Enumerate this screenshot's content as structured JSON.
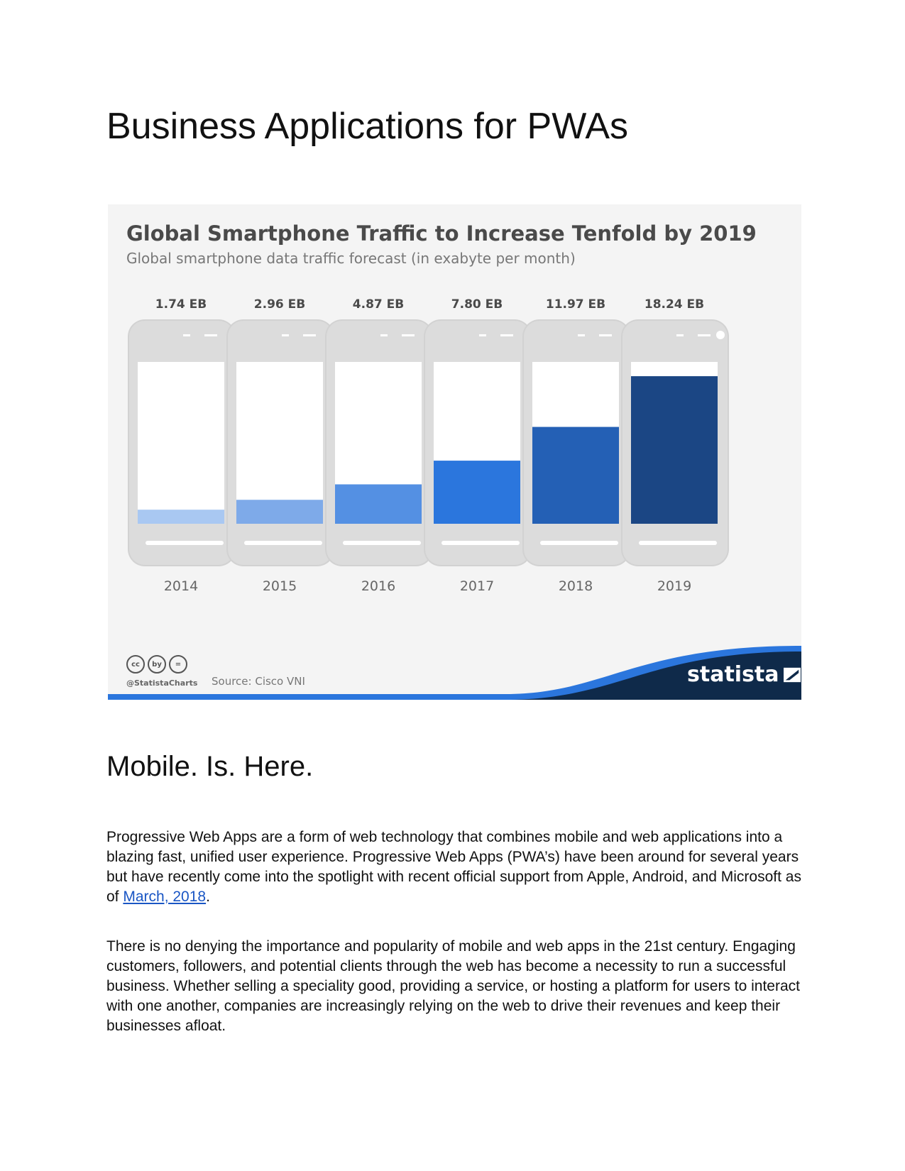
{
  "page": {
    "title": "Business Applications for PWAs"
  },
  "infographic": {
    "title": "Global Smartphone Traffic to Increase Tenfold by 2019",
    "subtitle": "Global smartphone data traffic forecast (in exabyte per month)",
    "handle": "@StatistaCharts",
    "source": "Source: Cisco VNI",
    "brand": "statista",
    "cc_icons": [
      "cc",
      "by",
      "="
    ]
  },
  "chart_data": {
    "type": "bar",
    "title": "Global Smartphone Traffic to Increase Tenfold by 2019",
    "subtitle": "Global smartphone data traffic forecast (in exabyte per month)",
    "categories": [
      "2014",
      "2015",
      "2016",
      "2017",
      "2018",
      "2019"
    ],
    "values": [
      1.74,
      2.96,
      4.87,
      7.8,
      11.97,
      18.24
    ],
    "data_labels": [
      "1.74 EB",
      "2.96 EB",
      "4.87 EB",
      "7.80 EB",
      "11.97 EB",
      "18.24 EB"
    ],
    "colors": [
      "#a9c8f2",
      "#7eaae9",
      "#5490e3",
      "#2b76dd",
      "#2460b5",
      "#1b4684"
    ],
    "ylim": [
      0,
      20
    ],
    "grid": false,
    "source": "Source: Cisco VNI"
  },
  "section": {
    "title": "Mobile. Is. Here."
  },
  "paragraphs": {
    "p1_before": "Progressive Web Apps are a form of web technology that combines mobile and web applications into a blazing fast, unified user experience.  Progressive Web Apps (PWA’s) have been around for several years but have recently come into the spotlight with recent official support from Apple, Android, and Microsoft as of ",
    "p1_link": "March, 2018",
    "p1_after": ".",
    "p2": "There is no denying the importance and popularity of mobile and web apps in the 21st century. Engaging customers, followers, and potential clients through the web has become a necessity to run a successful business. Whether selling a speciality good, providing a service, or hosting a platform for users to interact with one another, companies are increasingly relying on the web to drive their revenues and keep their businesses afloat."
  }
}
